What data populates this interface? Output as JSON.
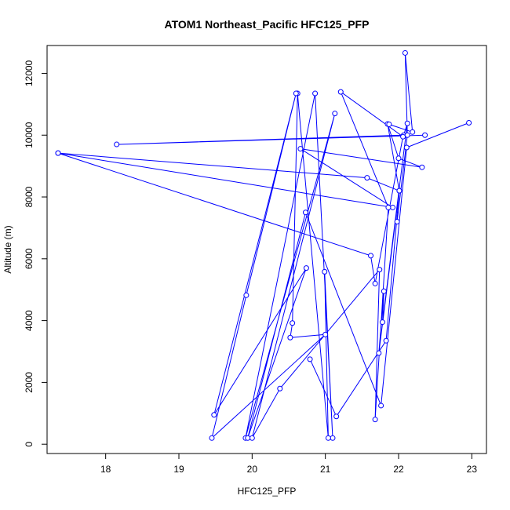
{
  "chart_data": {
    "type": "line",
    "title": "ATOM1 Northeast_Pacific HFC125_PFP",
    "xlabel": "HFC125_PFP",
    "ylabel": "Altitude (m)",
    "xlim": [
      17.2,
      23.2
    ],
    "ylim": [
      -300,
      12900
    ],
    "xticks": [
      18,
      19,
      20,
      21,
      22,
      23
    ],
    "yticks": [
      0,
      2000,
      4000,
      6000,
      8000,
      10000,
      12000
    ],
    "grid": false,
    "marker": "open-circle",
    "line_color": "#0000ff",
    "series": [
      {
        "points": [
          [
            22.36,
            10000
          ],
          [
            18.15,
            9700
          ],
          [
            22.07,
            10000
          ],
          [
            22.12,
            10380
          ],
          [
            21.78,
            3950
          ],
          [
            21.8,
            4950
          ],
          [
            21.73,
            2950
          ],
          [
            22.01,
            8200
          ],
          [
            21.85,
            10360
          ],
          [
            22.0,
            9250
          ],
          [
            22.32,
            8960
          ],
          [
            20.66,
            9560
          ],
          [
            21.92,
            7660
          ],
          [
            17.35,
            9420
          ],
          [
            21.62,
            6100
          ],
          [
            21.68,
            5200
          ],
          [
            22.06,
            9950
          ],
          [
            21.21,
            11400
          ],
          [
            21.86,
            7660
          ],
          [
            21.68,
            800
          ],
          [
            21.74,
            5650
          ],
          [
            20.38,
            1800
          ],
          [
            20.0,
            200
          ],
          [
            21.13,
            10700
          ],
          [
            19.91,
            200
          ],
          [
            20.86,
            11350
          ],
          [
            21.1,
            200
          ],
          [
            20.99,
            5580
          ],
          [
            21.04,
            200
          ],
          [
            20.62,
            11350
          ],
          [
            20.55,
            3920
          ],
          [
            20.52,
            3450
          ],
          [
            21.0,
            3550
          ],
          [
            19.45,
            200
          ],
          [
            19.92,
            4820
          ],
          [
            20.6,
            11350
          ],
          [
            19.48,
            950
          ],
          [
            20.74,
            5700
          ],
          [
            19.94,
            200
          ],
          [
            20.73,
            7500
          ],
          [
            21.76,
            1250
          ],
          [
            22.11,
            9600
          ],
          [
            22.96,
            10400
          ]
        ]
      },
      {
        "points": [
          [
            20.79,
            2750
          ],
          [
            21.15,
            900
          ],
          [
            21.83,
            3350
          ],
          [
            22.01,
            8200
          ],
          [
            21.57,
            8620
          ],
          [
            17.35,
            9420
          ]
        ]
      },
      {
        "points": [
          [
            21.98,
            7200
          ],
          [
            22.12,
            10000
          ],
          [
            22.09,
            12660
          ],
          [
            22.19,
            10100
          ],
          [
            21.87,
            10350
          ]
        ]
      }
    ]
  }
}
